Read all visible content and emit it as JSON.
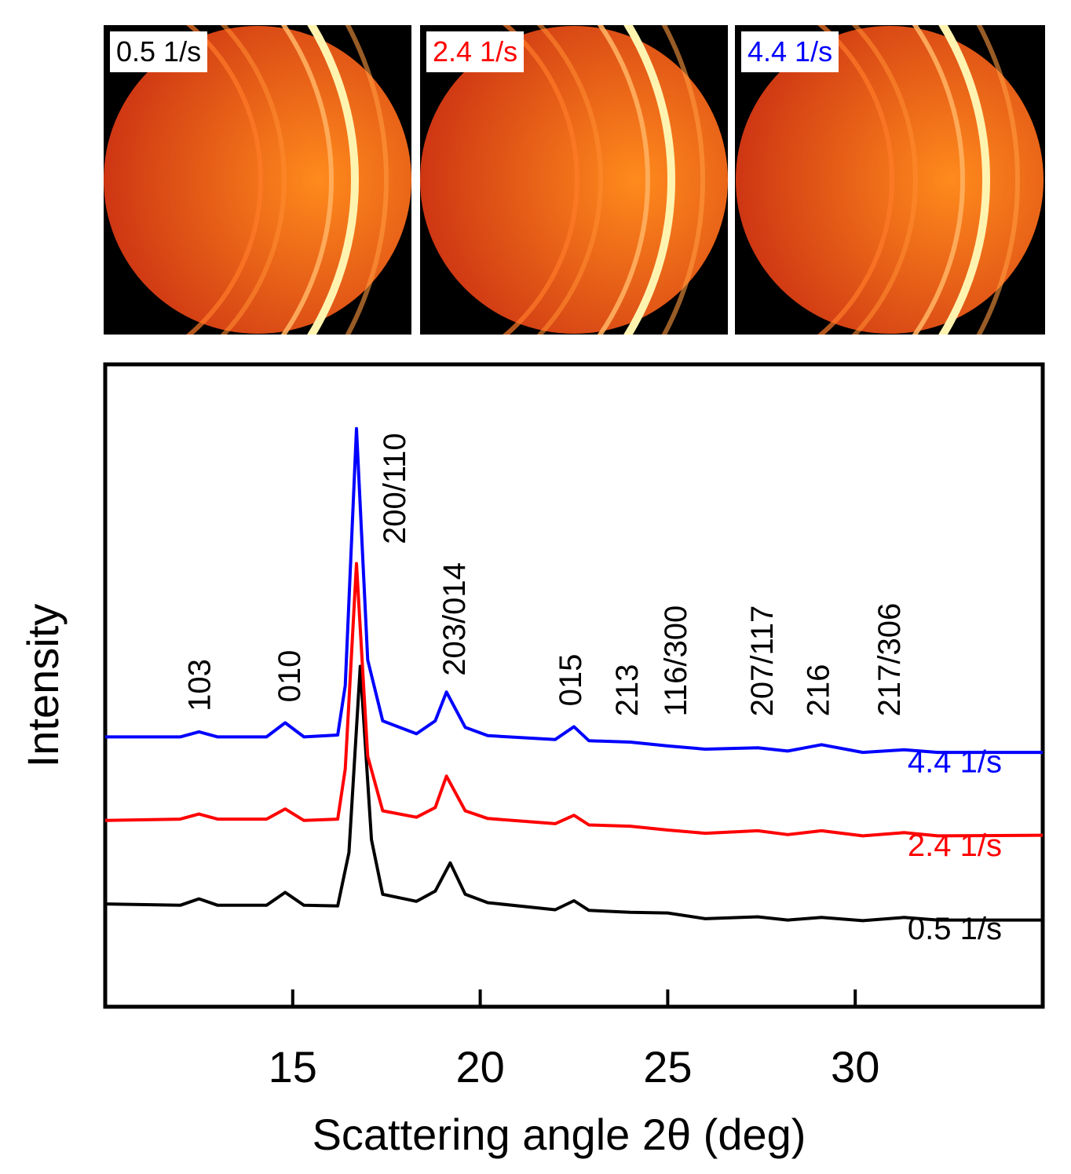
{
  "panels": [
    {
      "label": "0.5 1/s",
      "color": "#000000"
    },
    {
      "label": "2.4 1/s",
      "color": "#ff0000"
    },
    {
      "label": "4.4 1/s",
      "color": "#0000ff"
    }
  ],
  "chart_data": {
    "type": "line",
    "title": "",
    "xlabel": "Scattering angle 2θ (deg)",
    "ylabel": "Intensity",
    "xlim": [
      10,
      35
    ],
    "ylim": [
      0,
      100
    ],
    "x_ticks": [
      15,
      20,
      25,
      30
    ],
    "x_tick_labels": [
      "15",
      "20",
      "25",
      "30"
    ],
    "series": [
      {
        "name": "0.5 1/s",
        "color": "#000000",
        "offset": 16,
        "x": [
          10.0,
          12.0,
          12.5,
          13.0,
          14.3,
          14.8,
          15.3,
          16.2,
          16.5,
          16.8,
          17.1,
          17.4,
          18.3,
          18.8,
          19.2,
          19.6,
          20.2,
          22.0,
          22.5,
          22.9,
          24.0,
          25.0,
          26.0,
          27.4,
          28.2,
          29.1,
          30.2,
          31.3,
          32.2,
          35.0
        ],
        "y": [
          0.0,
          -0.2,
          0.8,
          -0.2,
          -0.2,
          1.8,
          -0.2,
          -0.3,
          8.0,
          37.0,
          10.0,
          1.5,
          0.4,
          2.0,
          6.4,
          1.5,
          0.2,
          -0.9,
          0.5,
          -1.0,
          -1.3,
          -1.4,
          -2.3,
          -2.0,
          -2.5,
          -2.1,
          -2.6,
          -2.1,
          -2.5,
          -2.5
        ]
      },
      {
        "name": "2.4 1/s",
        "color": "#ff0000",
        "offset": 29,
        "x": [
          10.0,
          12.0,
          12.5,
          13.0,
          14.3,
          14.8,
          15.3,
          16.2,
          16.4,
          16.7,
          17.0,
          17.4,
          18.3,
          18.8,
          19.1,
          19.6,
          20.2,
          22.0,
          22.5,
          22.9,
          24.0,
          25.0,
          26.0,
          27.4,
          28.2,
          29.1,
          30.2,
          31.3,
          32.2,
          35.0
        ],
        "y": [
          0.0,
          0.2,
          1.0,
          0.2,
          0.2,
          1.8,
          0.0,
          0.2,
          8.0,
          40.0,
          10.0,
          1.5,
          0.5,
          2.0,
          6.9,
          1.5,
          0.3,
          -0.5,
          0.8,
          -0.7,
          -0.9,
          -1.5,
          -2.0,
          -1.6,
          -2.2,
          -1.6,
          -2.4,
          -1.9,
          -2.4,
          -2.3
        ]
      },
      {
        "name": "4.4 1/s",
        "color": "#0000ff",
        "offset": 42,
        "x": [
          10.0,
          12.0,
          12.5,
          13.0,
          14.3,
          14.8,
          15.3,
          16.2,
          16.4,
          16.7,
          17.0,
          17.4,
          18.3,
          18.8,
          19.1,
          19.6,
          20.2,
          22.0,
          22.5,
          22.9,
          24.0,
          25.0,
          26.0,
          27.4,
          28.2,
          29.1,
          30.2,
          31.3,
          32.2,
          35.0
        ],
        "y": [
          0.0,
          0.0,
          0.8,
          0.0,
          0.0,
          2.2,
          0.0,
          0.3,
          8.0,
          48.0,
          12.0,
          2.5,
          0.5,
          2.5,
          7.0,
          1.5,
          0.2,
          -0.4,
          1.6,
          -0.6,
          -0.8,
          -1.4,
          -1.9,
          -1.7,
          -2.2,
          -1.2,
          -2.4,
          -2.0,
          -2.4,
          -2.4
        ]
      }
    ],
    "annotations": [
      {
        "text": "103",
        "x": 12.5
      },
      {
        "text": "010",
        "x": 14.9
      },
      {
        "text": "200/110",
        "x": 17.7
      },
      {
        "text": "203/014",
        "x": 19.3
      },
      {
        "text": "015",
        "x": 22.4
      },
      {
        "text": "213",
        "x": 23.9
      },
      {
        "text": "116/300",
        "x": 25.2
      },
      {
        "text": "207/117",
        "x": 27.5
      },
      {
        "text": "216",
        "x": 29.0
      },
      {
        "text": "217/306",
        "x": 30.9
      }
    ]
  }
}
